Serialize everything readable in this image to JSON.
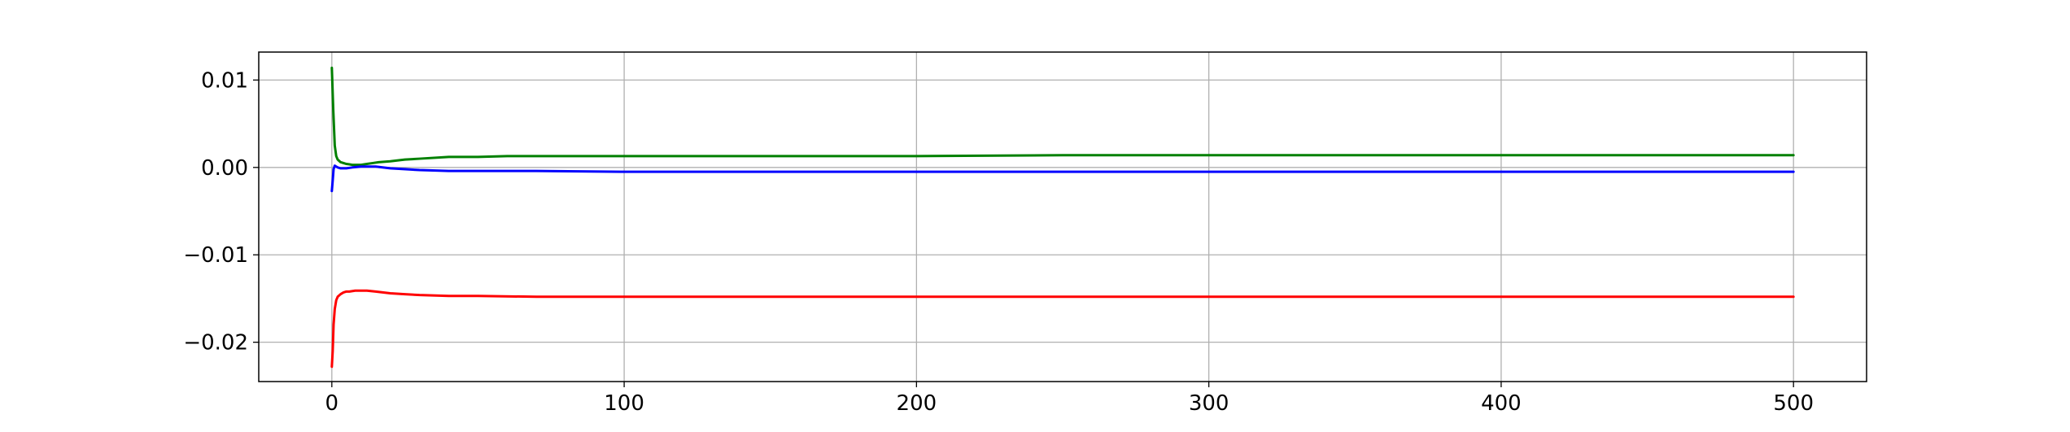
{
  "chart_data": {
    "type": "line",
    "title": "",
    "xlabel": "",
    "ylabel": "",
    "xlim": [
      -25,
      525
    ],
    "ylim": [
      -0.0245,
      0.0132
    ],
    "grid": true,
    "x_ticks": [
      0,
      100,
      200,
      300,
      400,
      500
    ],
    "x_tick_labels": [
      "0",
      "100",
      "200",
      "300",
      "400",
      "500"
    ],
    "y_ticks": [
      0.01,
      0.0,
      -0.01,
      -0.02
    ],
    "y_tick_labels": [
      "0.01",
      "0.00",
      "−0.01",
      "−0.02"
    ],
    "series": [
      {
        "color": "#008000",
        "x": [
          0,
          0.5,
          1,
          1.5,
          2,
          3,
          4,
          5,
          6,
          7,
          8,
          10,
          12,
          14,
          16,
          20,
          25,
          30,
          40,
          50,
          60,
          70,
          80,
          100,
          130,
          150,
          200,
          250,
          300,
          350,
          400,
          450,
          500
        ],
        "y": [
          0.0114,
          0.0065,
          0.0025,
          0.0013,
          0.0009,
          0.0006,
          0.0005,
          0.0004,
          0.00035,
          0.0003,
          0.0003,
          0.0003,
          0.0004,
          0.0005,
          0.0006,
          0.0007,
          0.0009,
          0.001,
          0.0012,
          0.0012,
          0.0013,
          0.0013,
          0.0013,
          0.0013,
          0.0013,
          0.0013,
          0.0013,
          0.0014,
          0.0014,
          0.0014,
          0.0014,
          0.0014,
          0.0014
        ]
      },
      {
        "color": "#0000ff",
        "x": [
          0,
          0.3,
          0.6,
          1,
          1.5,
          2,
          3,
          5,
          7,
          10,
          15,
          20,
          30,
          40,
          50,
          70,
          100,
          150,
          200,
          300,
          400,
          500
        ],
        "y": [
          -0.0027,
          -0.0015,
          -0.0002,
          0.0002,
          0.0001,
          0.0,
          -0.0001,
          -0.0001,
          0.0,
          0.0001,
          0.0001,
          -0.0001,
          -0.0003,
          -0.0004,
          -0.0004,
          -0.0004,
          -0.0005,
          -0.0005,
          -0.0005,
          -0.0005,
          -0.0005,
          -0.0005
        ]
      },
      {
        "color": "#ff0000",
        "x": [
          0,
          0.3,
          0.6,
          1,
          1.5,
          2,
          3,
          4,
          5,
          6,
          8,
          10,
          12,
          15,
          20,
          25,
          30,
          40,
          50,
          70,
          100,
          150,
          200,
          300,
          400,
          500
        ],
        "y": [
          -0.0228,
          -0.021,
          -0.018,
          -0.0162,
          -0.0152,
          -0.0148,
          -0.0145,
          -0.0143,
          -0.0142,
          -0.0142,
          -0.0141,
          -0.0141,
          -0.0141,
          -0.0142,
          -0.0144,
          -0.0145,
          -0.0146,
          -0.0147,
          -0.0147,
          -0.0148,
          -0.0148,
          -0.0148,
          -0.0148,
          -0.0148,
          -0.0148,
          -0.0148
        ]
      }
    ]
  }
}
